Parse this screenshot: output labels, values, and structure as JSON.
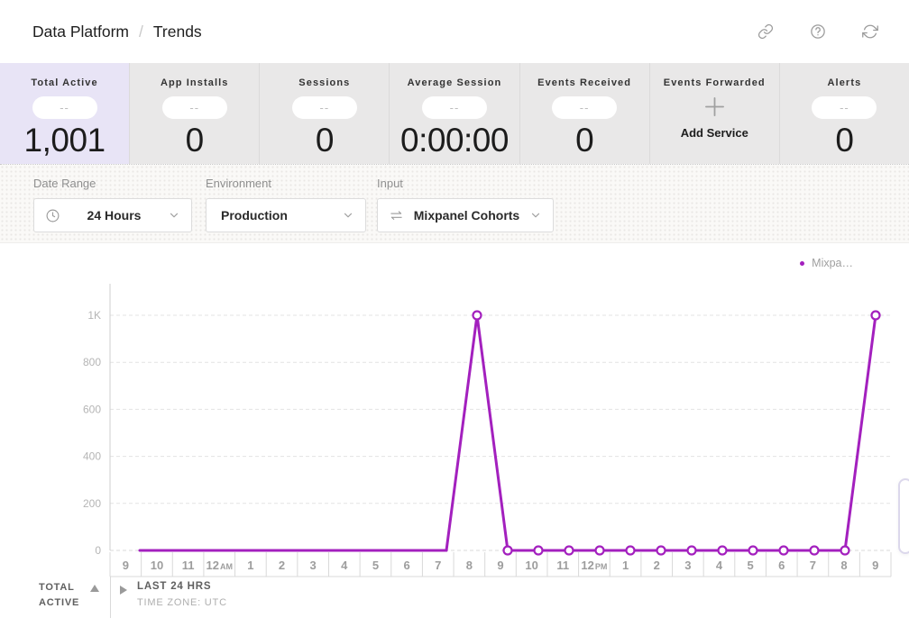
{
  "header": {
    "breadcrumb": {
      "parent": "Data Platform",
      "separator": "/",
      "current": "Trends"
    },
    "actions": [
      {
        "icon": "link"
      },
      {
        "icon": "help"
      },
      {
        "icon": "refresh"
      }
    ]
  },
  "metrics": {
    "cards": [
      {
        "label": "Total Active",
        "change_pill": "--",
        "value": "1,001",
        "selected": true
      },
      {
        "label": "App Installs",
        "change_pill": "--",
        "value": "0"
      },
      {
        "label": "Sessions",
        "change_pill": "--",
        "value": "0"
      },
      {
        "label": "Average Session",
        "change_pill": "--",
        "value": "0:00:00"
      },
      {
        "label": "Events Received",
        "change_pill": "--",
        "value": "0"
      },
      {
        "label": "Events Forwarded",
        "action_icon": "plus",
        "action_label": "Add Service"
      },
      {
        "label": "Alerts",
        "change_pill": "--",
        "value": "0"
      }
    ]
  },
  "filters": {
    "date_range": {
      "label": "Date Range",
      "value": "24 Hours",
      "icon": "clock"
    },
    "environment": {
      "label": "Environment",
      "value": "Production"
    },
    "input": {
      "label": "Input",
      "value": "Mixpanel Cohorts",
      "icon": "transfer-arrows"
    }
  },
  "chart_data": {
    "type": "line",
    "title": "",
    "x_labels": [
      "9",
      "10",
      "11",
      "12 AM",
      "1",
      "2",
      "3",
      "4",
      "5",
      "6",
      "7",
      "8",
      "9",
      "10",
      "11",
      "12 PM",
      "1",
      "2",
      "3",
      "4",
      "5",
      "6",
      "7",
      "8",
      "9"
    ],
    "y_tick_values": [
      0,
      200,
      400,
      600,
      800,
      1000
    ],
    "y_tick_labels": [
      "0",
      "200",
      "400",
      "600",
      "800",
      "1K"
    ],
    "ylim": [
      0,
      1000
    ],
    "grid": "horizontal-dashed",
    "legend": {
      "position": "top-right",
      "label": "Mixpa…",
      "color": "#a320be"
    },
    "series": [
      {
        "name": "Mixpanel Cohorts",
        "legend_label": "Mixpa…",
        "color": "#a320be",
        "values": [
          0,
          0,
          0,
          0,
          0,
          0,
          0,
          0,
          0,
          0,
          0,
          1000,
          0,
          0,
          0,
          0,
          0,
          0,
          0,
          0,
          0,
          0,
          0,
          0,
          1000
        ],
        "marker_indices": [
          11,
          12,
          13,
          14,
          15,
          16,
          17,
          18,
          19,
          20,
          21,
          22,
          23,
          24
        ]
      }
    ]
  },
  "table_footer": {
    "row_label_lines": [
      "TOTAL",
      "ACTIVE"
    ],
    "sort_icon": "triangle-up",
    "expand_icon": "triangle-right",
    "range_label": "LAST 24 HRS",
    "timezone_label": "TIME ZONE: UTC"
  },
  "colors": {
    "accent": "#a320be",
    "selected_card_bg": "#e8e4f6",
    "card_bg": "#e9e8e8"
  }
}
